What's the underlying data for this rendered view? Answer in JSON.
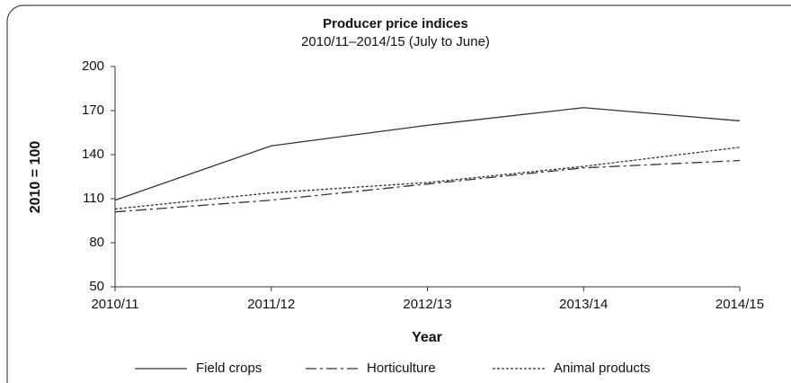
{
  "chart_data": {
    "type": "line",
    "title": "Producer price indices",
    "subtitle": "2010/11–2014/15 (July to June)",
    "x_label": "Year",
    "y_label": "2010 = 100",
    "categories": [
      "2010/11",
      "2011/12",
      "2012/13",
      "2013/14",
      "2014/15"
    ],
    "series": [
      {
        "name": "Field crops",
        "color": "#333333",
        "style": "solid",
        "values": [
          109,
          146,
          160,
          172,
          163
        ]
      },
      {
        "name": "Horticulture",
        "color": "#333333",
        "style": "dashdot",
        "values": [
          101,
          109,
          120,
          131,
          136
        ]
      },
      {
        "name": "Animal products",
        "color": "#333333",
        "style": "dotted",
        "values": [
          103,
          114,
          121,
          132,
          145
        ]
      }
    ],
    "ylim": [
      50,
      200
    ],
    "yticks": [
      50,
      80,
      110,
      140,
      170,
      200
    ],
    "grid": false,
    "legend": "bottom"
  }
}
